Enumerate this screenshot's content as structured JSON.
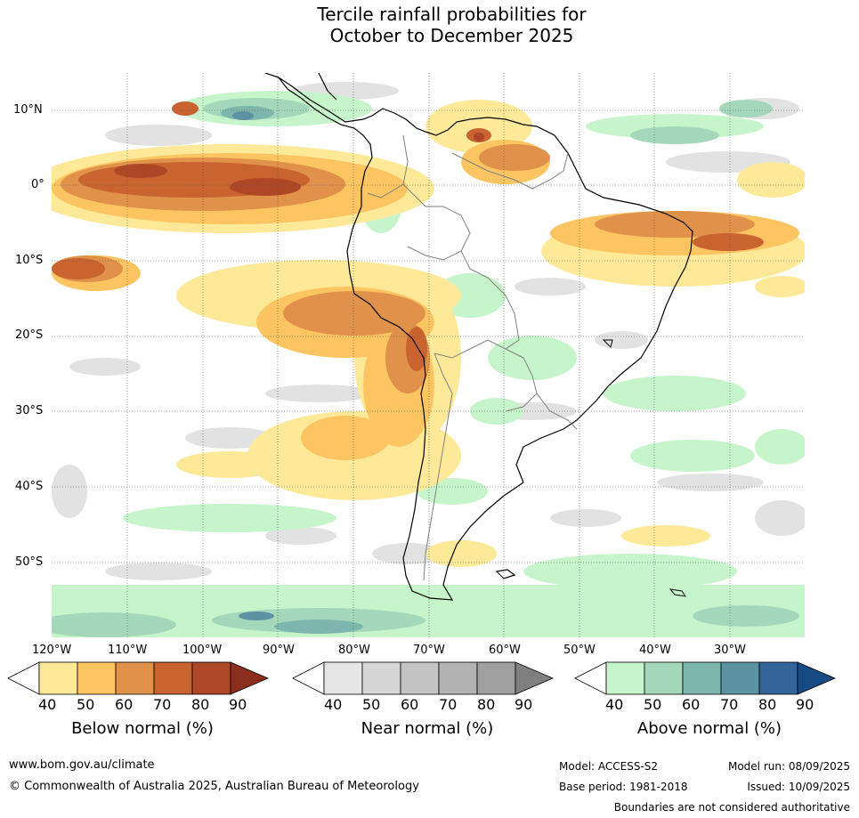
{
  "title_line1": "Tercile rainfall probabilities for",
  "title_line2": "October to December 2025",
  "lat_labels": [
    "10°N",
    "0°",
    "10°S",
    "20°S",
    "30°S",
    "40°S",
    "50°S"
  ],
  "lon_labels": [
    "120°W",
    "110°W",
    "100°W",
    "90°W",
    "80°W",
    "70°W",
    "60°W",
    "50°W",
    "40°W",
    "30°W"
  ],
  "legend": {
    "below": {
      "title": "Below normal (%)",
      "ticks": [
        "40",
        "50",
        "60",
        "70",
        "80",
        "90"
      ],
      "colors": [
        "#ffffff",
        "#fee999",
        "#fdc561",
        "#e0914a",
        "#c96330",
        "#ae4726",
        "#8c2d1d"
      ]
    },
    "near": {
      "title": "Near normal (%)",
      "ticks": [
        "40",
        "50",
        "60",
        "70",
        "80",
        "90"
      ],
      "colors": [
        "#ffffff",
        "#e6e6e6",
        "#d6d6d6",
        "#c4c4c4",
        "#b3b3b3",
        "#a0a0a0",
        "#808080"
      ]
    },
    "above": {
      "title": "Above normal (%)",
      "ticks": [
        "40",
        "50",
        "60",
        "70",
        "80",
        "90"
      ],
      "colors": [
        "#ffffff",
        "#c7f5cb",
        "#a5d8bb",
        "#7cb6ad",
        "#5b93a2",
        "#33649a",
        "#174b86"
      ]
    }
  },
  "footer": {
    "url": "www.bom.gov.au/climate",
    "copyright": "© Commonwealth of Australia 2025, Australian Bureau of Meteorology",
    "model": "Model: ACCESS-S2",
    "model_run": "Model run: 08/09/2025",
    "base_period": "Base period: 1981-2018",
    "issued": "Issued: 10/09/2025",
    "boundaries": "Boundaries are not considered authoritative"
  }
}
